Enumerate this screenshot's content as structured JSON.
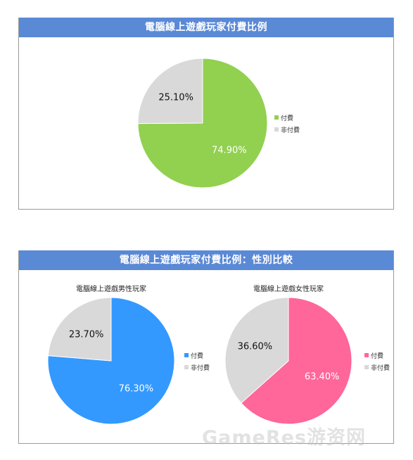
{
  "colors": {
    "header": "#5a89d6",
    "green": "#92d050",
    "gray": "#d9d9d9",
    "blue": "#3399ff",
    "pink": "#ff6699"
  },
  "chart_data": [
    {
      "type": "pie",
      "title": "電腦線上遊戲玩家付費比例",
      "categories": [
        "付費",
        "非付費"
      ],
      "values": [
        74.9,
        25.1
      ],
      "data_labels": [
        "74.90%",
        "25.10%"
      ],
      "slice_colors": [
        "#92d050",
        "#d9d9d9"
      ],
      "legend_position": "right"
    },
    {
      "type": "pie",
      "title": "電腦線上遊戲玩家付費比例：性別比較",
      "subtitle": "電腦線上遊戲男性玩家",
      "categories": [
        "付費",
        "非付費"
      ],
      "values": [
        76.3,
        23.7
      ],
      "data_labels": [
        "76.30%",
        "23.70%"
      ],
      "slice_colors": [
        "#3399ff",
        "#d9d9d9"
      ],
      "legend_position": "right"
    },
    {
      "type": "pie",
      "subtitle": "電腦線上遊戲女性玩家",
      "categories": [
        "付費",
        "非付費"
      ],
      "values": [
        63.4,
        36.6
      ],
      "data_labels": [
        "63.40%",
        "36.60%"
      ],
      "slice_colors": [
        "#ff6699",
        "#d9d9d9"
      ],
      "legend_position": "right"
    }
  ],
  "watermark": "GameRes游资网"
}
